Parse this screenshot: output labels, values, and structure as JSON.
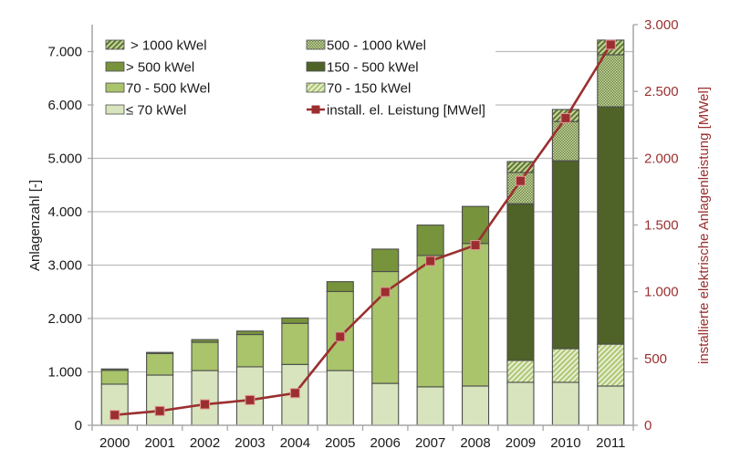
{
  "chart_data": {
    "type": "bar",
    "stacked": true,
    "title": "",
    "xlabel": "",
    "ylabel": "Anlagenzahl [-]",
    "y2label": "installierte elektrische Anlagenleistung [MWel]",
    "ylim": [
      0,
      7500
    ],
    "y2lim": [
      0,
      3000
    ],
    "yticks": [
      0,
      1000,
      2000,
      3000,
      4000,
      5000,
      6000,
      7000
    ],
    "ytick_labels": [
      "0",
      "1.000",
      "2.000",
      "3.000",
      "4.000",
      "5.000",
      "6.000",
      "7.000"
    ],
    "y2ticks": [
      0,
      500,
      1000,
      1500,
      2000,
      2500,
      3000
    ],
    "y2tick_labels": [
      "0",
      "500",
      "1.000",
      "1.500",
      "2.000",
      "2.500",
      "3.000"
    ],
    "grid": true,
    "legend_position": "top-left",
    "categories": [
      "2000",
      "2001",
      "2002",
      "2003",
      "2004",
      "2005",
      "2006",
      "2007",
      "2008",
      "2009",
      "2010",
      "2011"
    ],
    "series": [
      {
        "name": "≤ 70 kWel",
        "key": "le70",
        "color": "#d7e4bd",
        "pattern": "solid",
        "values": [
          770,
          940,
          1025,
          1095,
          1140,
          1025,
          785,
          720,
          735,
          805,
          805,
          735
        ]
      },
      {
        "name": "70 - 500 kWel",
        "key": "70to500",
        "color": "#a9c46a",
        "pattern": "solid",
        "values": [
          260,
          405,
          530,
          605,
          770,
          1480,
          2095,
          2460,
          2670,
          0,
          0,
          0
        ]
      },
      {
        "name": "> 500 kWel",
        "key": "gt500",
        "color": "#77933c",
        "pattern": "solid",
        "values": [
          25,
          20,
          50,
          65,
          100,
          185,
          420,
          570,
          695,
          0,
          0,
          0
        ]
      },
      {
        "name": "70 - 150 kWel",
        "key": "70to150",
        "color": "#c3d69b",
        "pattern": "diagonal-light",
        "values": [
          0,
          0,
          0,
          0,
          0,
          0,
          0,
          0,
          0,
          410,
          630,
          785
        ]
      },
      {
        "name": "150 - 500 kWel",
        "key": "150to500",
        "color": "#4f6228",
        "pattern": "solid",
        "values": [
          0,
          0,
          0,
          0,
          0,
          0,
          0,
          0,
          0,
          2935,
          3520,
          4445
        ]
      },
      {
        "name": "500 - 1000 kWel",
        "key": "500to1000",
        "color": "#9bb36b",
        "pattern": "dotted",
        "values": [
          0,
          0,
          0,
          0,
          0,
          0,
          0,
          0,
          0,
          585,
          735,
          975
        ]
      },
      {
        "name": "> 1000 kWel",
        "key": "gt1000",
        "color": "#77933c",
        "pattern": "diagonal-dark",
        "values": [
          0,
          0,
          0,
          0,
          0,
          0,
          0,
          0,
          0,
          205,
          225,
          275
        ]
      }
    ],
    "line_series": {
      "name": "install. el. Leistung [MWel]",
      "axis": "right",
      "color": "#9b2f2f",
      "values": [
        77,
        107,
        157,
        189,
        241,
        663,
        998,
        1230,
        1349,
        1830,
        2300,
        2850
      ]
    },
    "legend": [
      {
        "label": "> 1000 kWel",
        "key": "gt1000"
      },
      {
        "label": "500 - 1000 kWel",
        "key": "500to1000"
      },
      {
        "label": "> 500 kWel",
        "key": "gt500"
      },
      {
        "label": "150 - 500 kWel",
        "key": "150to500"
      },
      {
        "label": "70 - 500 kWel",
        "key": "70to500"
      },
      {
        "label": "70 - 150 kWel",
        "key": "70to150"
      },
      {
        "label": "≤ 70 kWel",
        "key": "le70"
      },
      {
        "label": "install. el. Leistung [MWel]",
        "key": "line"
      }
    ]
  }
}
